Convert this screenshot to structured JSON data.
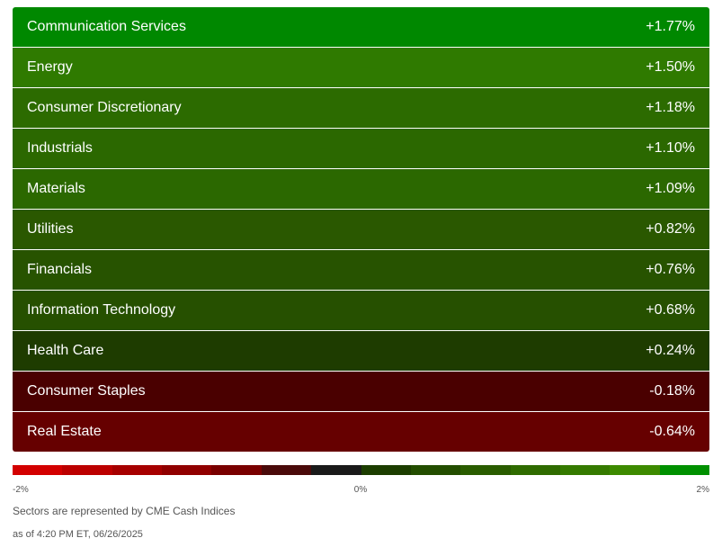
{
  "chart_data": {
    "type": "heatmap",
    "categories": [
      "Communication Services",
      "Energy",
      "Consumer Discretionary",
      "Industrials",
      "Materials",
      "Utilities",
      "Financials",
      "Information Technology",
      "Health Care",
      "Consumer Staples",
      "Real Estate"
    ],
    "values": [
      1.77,
      1.5,
      1.18,
      1.1,
      1.09,
      0.82,
      0.76,
      0.68,
      0.24,
      -0.18,
      -0.64
    ],
    "labels": [
      "+1.77%",
      "+1.50%",
      "+1.18%",
      "+1.10%",
      "+1.09%",
      "+0.82%",
      "+0.76%",
      "+0.68%",
      "+0.24%",
      "-0.18%",
      "-0.64%"
    ],
    "row_colors": [
      "#008800",
      "#2f7a00",
      "#2c6b00",
      "#2b6800",
      "#2b6800",
      "#2a5800",
      "#275300",
      "#265000",
      "#1e3c00",
      "#4a0000",
      "#660000"
    ],
    "scale": {
      "min_label": "-2%",
      "mid_label": "0%",
      "max_label": "2%",
      "colors": [
        "#d30000",
        "#bc0000",
        "#a60000",
        "#900000",
        "#790000",
        "#4a0a0a",
        "#1a1a1a",
        "#1c3d00",
        "#234d00",
        "#2a5c00",
        "#2f6b00",
        "#357a00",
        "#3d8a00",
        "#009000"
      ]
    }
  },
  "footer": {
    "note": "Sectors are represented by CME Cash Indices",
    "timestamp": "as of 4:20 PM ET, 06/26/2025"
  }
}
